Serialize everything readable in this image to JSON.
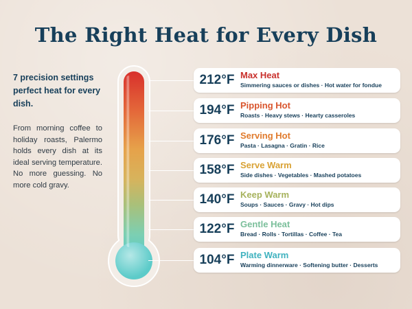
{
  "title": "The Right Heat for Every Dish",
  "intro": "7 precision settings perfect heat for every dish.",
  "description": "From morning coffee to holiday roasts, Palermo holds every dish at its ideal serving temperature. No more guessing. No more cold gravy.",
  "settings": [
    {
      "temp": "212°F",
      "name": "Max Heat",
      "uses": "Simmering sauces or dishes · Hot water for fondue",
      "color": "#c9302c"
    },
    {
      "temp": "194°F",
      "name": "Pipping Hot",
      "uses": "Roasts · Heavy stews · Hearty casseroles",
      "color": "#d9552d"
    },
    {
      "temp": "176°F",
      "name": "Serving Hot",
      "uses": "Pasta · Lasagna · Gratin · Rice",
      "color": "#e07a2c"
    },
    {
      "temp": "158°F",
      "name": "Serve Warm",
      "uses": "Side dishes · Vegetables · Mashed potatoes",
      "color": "#d9a235"
    },
    {
      "temp": "140°F",
      "name": "Keep Warm",
      "uses": "Soups · Sauces · Gravy · Hot dips",
      "color": "#a6b25c"
    },
    {
      "temp": "122°F",
      "name": "Gentle Heat",
      "uses": "Bread · Rolls · Tortillas · Coffee · Tea",
      "color": "#7bbf9b"
    },
    {
      "temp": "104°F",
      "name": "Plate Warm",
      "uses": "Warming dinnerware · Softening butter · Desserts",
      "color": "#3fb2bf"
    }
  ],
  "colors": {
    "background": "#ece1d7",
    "navy": "#173f5a",
    "thermo_top": "#d8302c",
    "thermo_bottom": "#5ccbc9"
  }
}
